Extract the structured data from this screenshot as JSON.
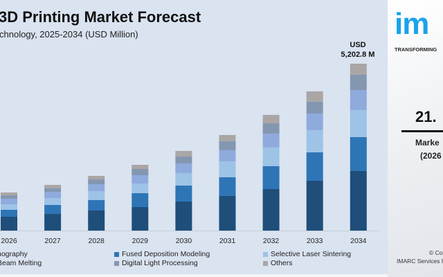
{
  "chart_data": {
    "type": "bar",
    "stacked": true,
    "title": "3D Printing Market Forecast",
    "subtitle": "chnology, 2025-2034 (USD Million)",
    "categories": [
      "2026",
      "2027",
      "2028",
      "2029",
      "2030",
      "2031",
      "2032",
      "2033",
      "2034"
    ],
    "series": [
      {
        "name": "hography",
        "color": "#1f4e7a",
        "values": [
          432,
          518,
          626,
          734,
          907,
          1080,
          1296,
          1555,
          1857
        ]
      },
      {
        "name": "Fused Deposition Modeling",
        "color": "#2e75b6",
        "values": [
          216,
          281,
          324,
          432,
          497,
          583,
          713,
          886,
          1058
        ]
      },
      {
        "name": "Selective Laser Sintering",
        "color": "#9dc3e6",
        "values": [
          173,
          216,
          281,
          302,
          389,
          497,
          583,
          691,
          842
        ]
      },
      {
        "name": "Beam Melting",
        "color": "#8faadc",
        "values": [
          173,
          194,
          216,
          259,
          302,
          346,
          432,
          518,
          626
        ]
      },
      {
        "name": "Digital Light Processing",
        "color": "#8497b0",
        "values": [
          108,
          108,
          151,
          194,
          216,
          281,
          324,
          367,
          475
        ]
      },
      {
        "name": "Others",
        "color": "#aaa6a6",
        "values": [
          86,
          108,
          108,
          130,
          173,
          194,
          259,
          324,
          346
        ]
      }
    ],
    "annotation": {
      "line1": "USD",
      "line2": "5,202.8 M"
    },
    "ylim": [
      0,
      5500
    ],
    "grid": false,
    "legend": "bottom"
  },
  "side_panel": {
    "logo_text": "imarc",
    "tagline": "TRANSFORMING",
    "cagr_value": "21.",
    "cagr_label_1": "Marke",
    "cagr_label_2": "(2026",
    "copyright_1": "© Co",
    "copyright_2": "IMARC Services I"
  }
}
